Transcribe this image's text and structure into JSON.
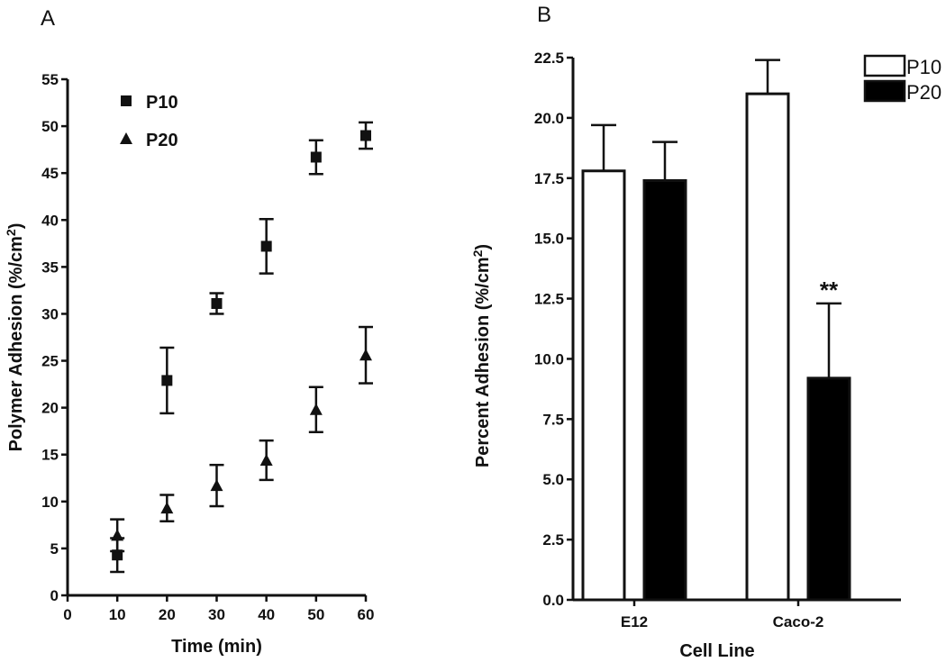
{
  "chart_data": [
    {
      "panel": "A",
      "type": "scatter",
      "xlabel": "Time (min)",
      "ylabel": "Polymer Adhesion (%/cm",
      "ylabel_sup": "2",
      "ylabel_end": ")",
      "xlim": [
        0,
        60
      ],
      "ylim": [
        0,
        55
      ],
      "xticks": [
        "0",
        "10",
        "20",
        "30",
        "40",
        "50",
        "60"
      ],
      "yticks": [
        "0",
        "5",
        "10",
        "15",
        "20",
        "25",
        "30",
        "35",
        "40",
        "45",
        "50",
        "55"
      ],
      "series": [
        {
          "name": "P10",
          "marker": "square",
          "x": [
            10,
            20,
            30,
            40,
            50,
            60
          ],
          "y": [
            4.3,
            22.9,
            31.1,
            37.2,
            46.7,
            49.0
          ],
          "err": [
            1.8,
            3.5,
            1.1,
            2.9,
            1.8,
            1.4
          ]
        },
        {
          "name": "P20",
          "marker": "triangle",
          "x": [
            10,
            20,
            30,
            40,
            50,
            60
          ],
          "y": [
            6.4,
            9.3,
            11.7,
            14.4,
            19.8,
            25.6
          ],
          "err": [
            1.7,
            1.4,
            2.2,
            2.1,
            2.4,
            3.0
          ]
        }
      ]
    },
    {
      "panel": "B",
      "type": "bar",
      "xlabel": "Cell  Line",
      "ylabel": "Percent  Adhesion (%/cm",
      "ylabel_sup": "2",
      "ylabel_end": ")",
      "ylim": [
        0,
        22.5
      ],
      "categories": [
        "E12",
        "Caco-2"
      ],
      "yticks": [
        "0.0",
        "2.5",
        "5.0",
        "7.5",
        "10.0",
        "12.5",
        "15.0",
        "17.5",
        "20.0",
        "22.5"
      ],
      "series": [
        {
          "name": "P10",
          "fill": "#ffffff",
          "values": [
            17.8,
            21.0
          ],
          "err": [
            1.9,
            1.4
          ]
        },
        {
          "name": "P20",
          "fill": "#000000",
          "values": [
            17.4,
            9.2
          ],
          "err": [
            1.6,
            3.1
          ]
        }
      ],
      "annotations": [
        {
          "category": "Caco-2",
          "series": "P20",
          "text": "**"
        }
      ]
    }
  ]
}
